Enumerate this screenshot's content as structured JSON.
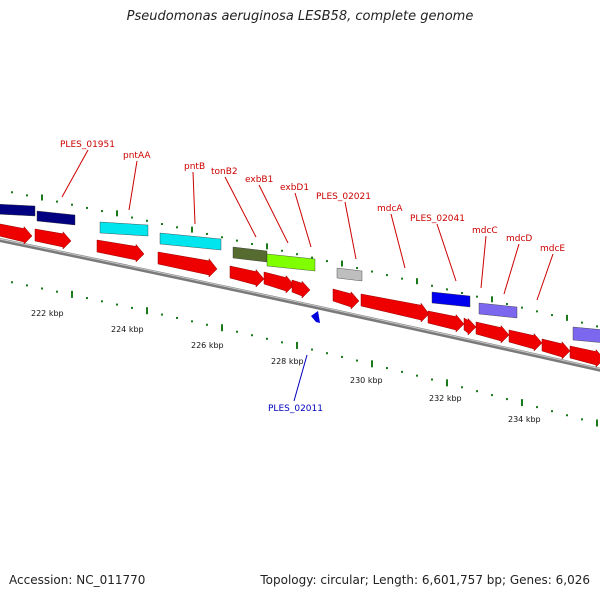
{
  "header": {
    "title": "Pseudomonas aeruginosa LESB58, complete genome"
  },
  "footer": {
    "accession": "Accession: NC_011770",
    "summary": "Topology: circular; Length: 6,601,757 bp; Genes: 6,026"
  },
  "colors": {
    "cds": "#ee0000",
    "backbone": "#7a7a7a",
    "dots": "#1a7a1a",
    "label_red": "#cc0000",
    "label_blue": "#0000bb"
  },
  "scale_labels": [
    "222 kbp",
    "224 kbp",
    "226 kbp",
    "228 kbp",
    "230 kbp",
    "232 kbp",
    "234 kbp"
  ],
  "gene_labels": [
    {
      "name": "PLES_01951",
      "color": "red"
    },
    {
      "name": "pntAA",
      "color": "red"
    },
    {
      "name": "pntB",
      "color": "red"
    },
    {
      "name": "tonB2",
      "color": "red"
    },
    {
      "name": "exbB1",
      "color": "red"
    },
    {
      "name": "exbD1",
      "color": "red"
    },
    {
      "name": "PLES_02021",
      "color": "red"
    },
    {
      "name": "mdcA",
      "color": "red"
    },
    {
      "name": "PLES_02041",
      "color": "red"
    },
    {
      "name": "mdcC",
      "color": "red"
    },
    {
      "name": "mdcD",
      "color": "red"
    },
    {
      "name": "mdcE",
      "color": "red"
    },
    {
      "name": "PLES_02011",
      "color": "blue"
    }
  ],
  "cog_blocks": [
    {
      "color": "#000080"
    },
    {
      "color": "#000080"
    },
    {
      "color": "#00e5ee"
    },
    {
      "color": "#00e5ee"
    },
    {
      "color": "#556b2f"
    },
    {
      "color": "#7fff00"
    },
    {
      "color": "#bebebe"
    },
    {
      "color": "#0000ee"
    },
    {
      "color": "#7b68ee"
    },
    {
      "color": "#7b68ee"
    }
  ]
}
